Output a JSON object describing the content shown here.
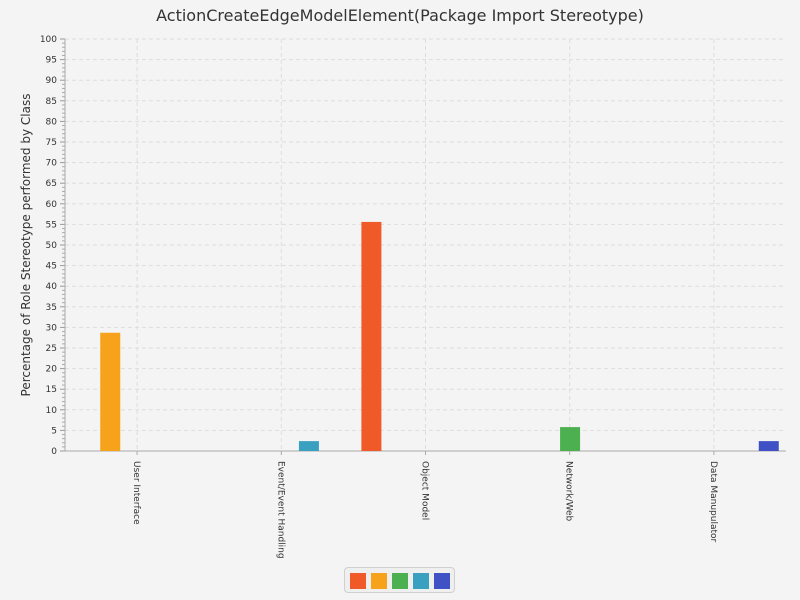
{
  "title": "ActionCreateEdgeModelElement(Package Import Stereotype)",
  "chart_data": {
    "type": "bar",
    "title": "ActionCreateEdgeModelElement(Package Import Stereotype)",
    "xlabel": "",
    "ylabel": "Percentage of Role Stereotype performed by Class",
    "ylim": [
      0,
      100
    ],
    "ytick_step": 5,
    "grid": true,
    "legend_position": "bottom-center",
    "categories": [
      "User Interface",
      "Event/Event Handling",
      "Object Model",
      "Network/Web",
      "Data Manupulator"
    ],
    "series": [
      {
        "color": "#f05a28",
        "values": [
          0,
          0,
          55.6,
          0,
          0
        ]
      },
      {
        "color": "#f7a21b",
        "values": [
          28.7,
          0,
          0,
          0,
          0
        ]
      },
      {
        "color": "#4caf50",
        "values": [
          0,
          0,
          0,
          5.8,
          0
        ]
      },
      {
        "color": "#3aa0c0",
        "values": [
          0,
          2.4,
          0,
          0,
          0
        ]
      },
      {
        "color": "#3f51c5",
        "values": [
          0,
          0,
          0,
          0,
          2.4
        ]
      }
    ]
  }
}
